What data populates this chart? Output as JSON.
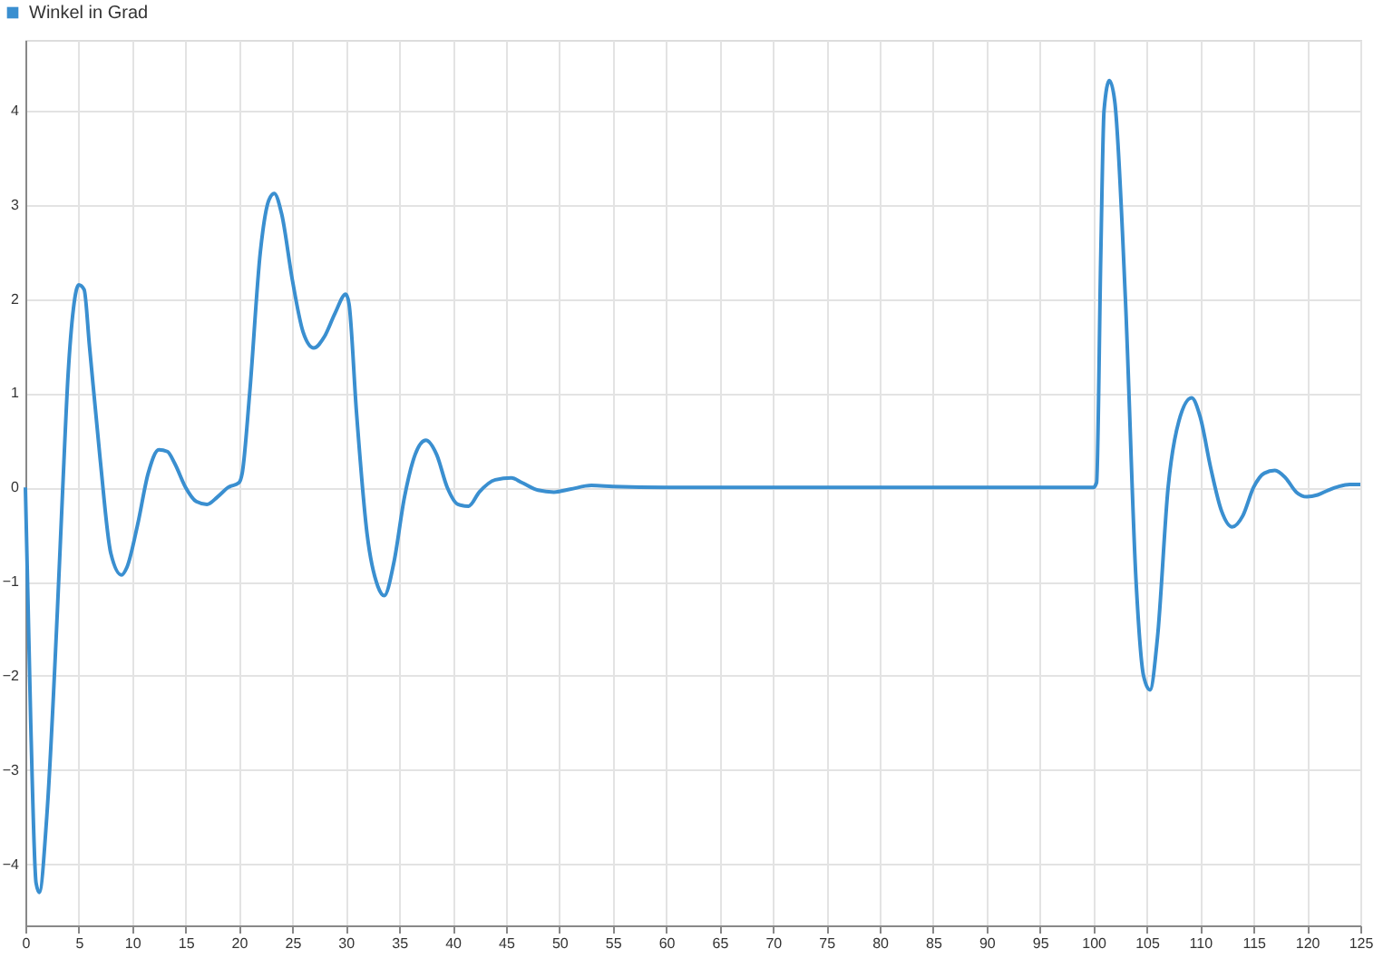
{
  "chart_data": {
    "type": "line",
    "legend": "top left",
    "grid": true,
    "marker": "none",
    "line_style": "solid",
    "xlim": [
      0,
      125
    ],
    "xticks": [
      0,
      5,
      10,
      15,
      20,
      25,
      30,
      35,
      40,
      45,
      50,
      55,
      60,
      65,
      70,
      75,
      80,
      85,
      90,
      95,
      100,
      105,
      110,
      115,
      120,
      125
    ],
    "ylim": [
      -4.65,
      4.75
    ],
    "yticks": [
      -4,
      -3,
      -2,
      -1,
      0,
      1,
      2,
      3,
      4
    ],
    "series": [
      {
        "name": "Winkel in Grad",
        "color": "#3a8fd0",
        "x": [
          0,
          0.5,
          1,
          1.3,
          2,
          3,
          3.5,
          4,
          4.5,
          5,
          5.5,
          6,
          7,
          8,
          9,
          9.5,
          10.5,
          11.5,
          12.5,
          13.3,
          14,
          15,
          16,
          17,
          18,
          19,
          20,
          20.3,
          21,
          22,
          22.8,
          23.3,
          24,
          25,
          26,
          27,
          28,
          29,
          30,
          30.3,
          31,
          32,
          33,
          33.6,
          34.5,
          35.5,
          36.5,
          37.5,
          38.5,
          39.5,
          40.5,
          41.5,
          42.5,
          44,
          45.5,
          46.5,
          48,
          49.5,
          51,
          53,
          55,
          60,
          70,
          80,
          90,
          100,
          100.3,
          100.7,
          101,
          101.5,
          102,
          103,
          104,
          104.7,
          105.3,
          106,
          107,
          108,
          109.2,
          110,
          111,
          112,
          113,
          114,
          115,
          116,
          117,
          118,
          119,
          120,
          121,
          122,
          123,
          124,
          125
        ],
        "values": [
          0,
          -2.5,
          -4.2,
          -4.3,
          -3.5,
          -1.3,
          0,
          1.2,
          1.9,
          2.15,
          2.1,
          1.5,
          0.3,
          -0.7,
          -0.93,
          -0.85,
          -0.4,
          0.15,
          0.4,
          0.38,
          0.25,
          0,
          -0.15,
          -0.18,
          -0.1,
          0,
          0.05,
          0.15,
          1.0,
          2.5,
          3.05,
          3.12,
          2.9,
          2.2,
          1.65,
          1.48,
          1.6,
          1.85,
          2.05,
          1.95,
          0.8,
          -0.5,
          -1.05,
          -1.15,
          -0.8,
          -0.1,
          0.35,
          0.5,
          0.35,
          0,
          -0.18,
          -0.2,
          -0.05,
          0.08,
          0.1,
          0.05,
          -0.03,
          -0.05,
          -0.02,
          0.02,
          0.01,
          0,
          0,
          0,
          0,
          0,
          0.05,
          2.5,
          4.0,
          4.32,
          4.1,
          2.0,
          -1.0,
          -2.0,
          -2.15,
          -1.6,
          0,
          0.7,
          0.95,
          0.75,
          0.2,
          -0.25,
          -0.42,
          -0.3,
          0,
          0.15,
          0.18,
          0.1,
          -0.05,
          -0.1,
          -0.08,
          -0.03,
          0.01,
          0.03,
          0.03
        ]
      }
    ]
  }
}
